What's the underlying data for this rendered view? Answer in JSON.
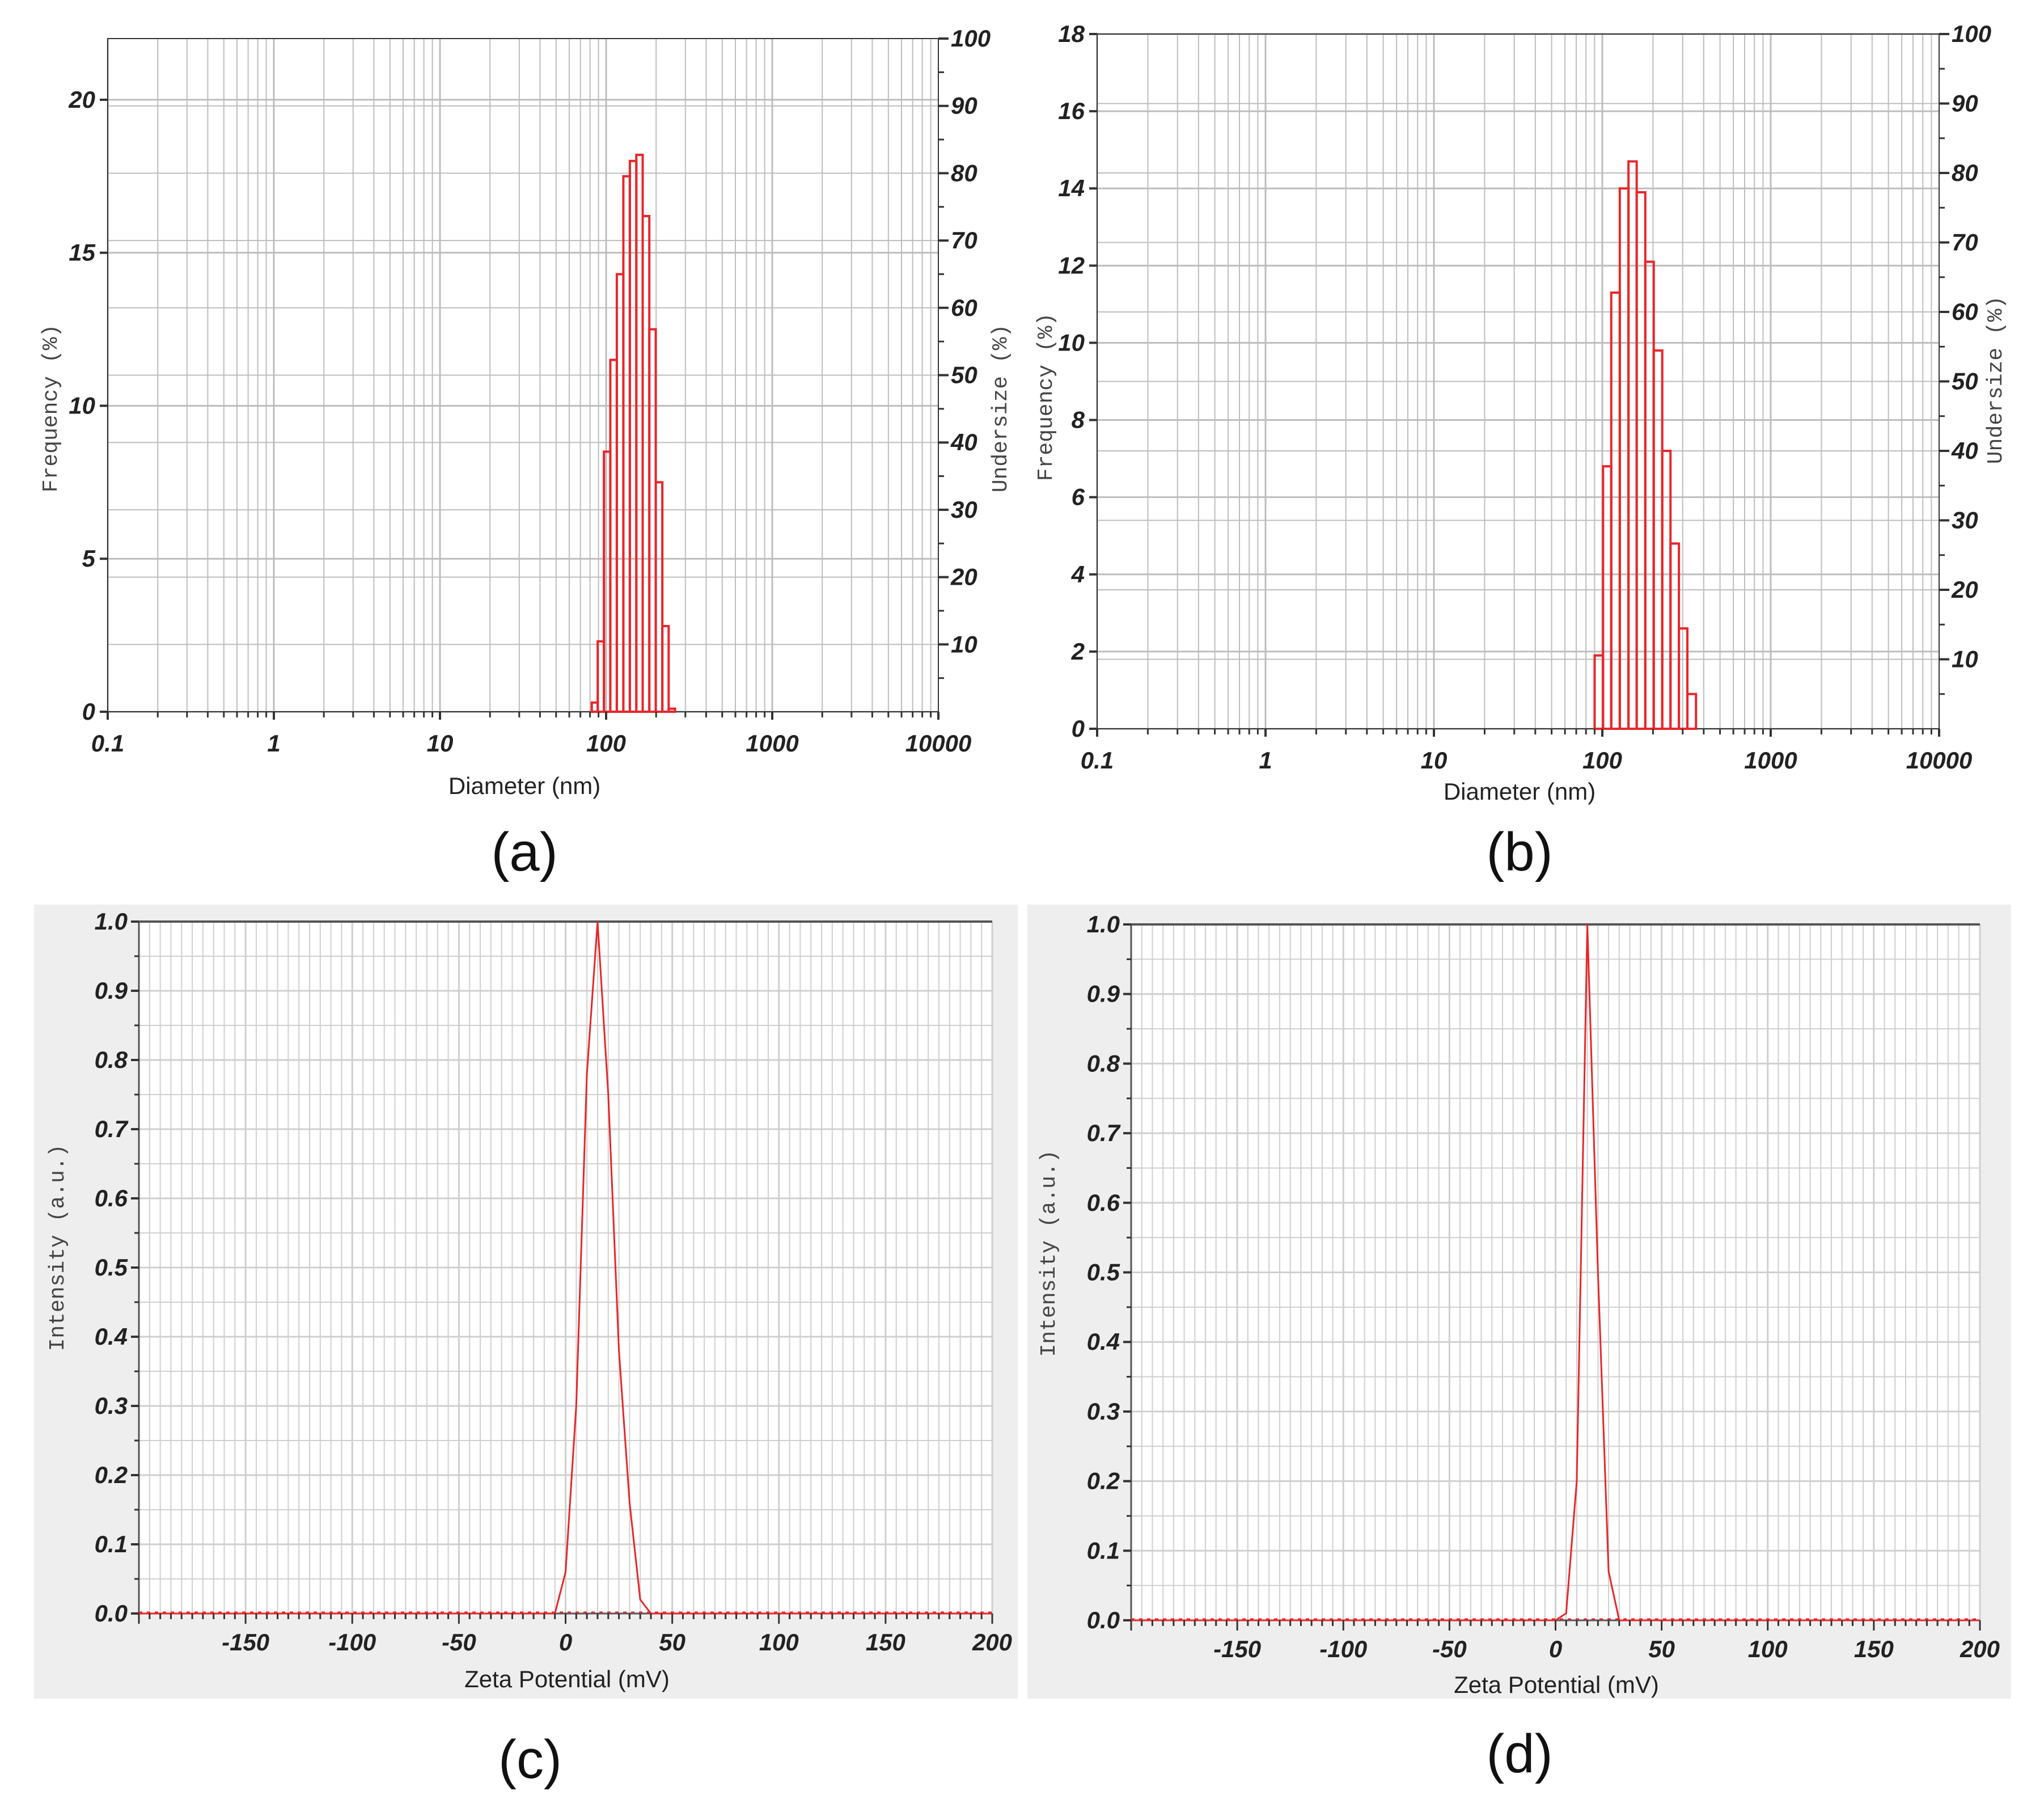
{
  "chart_data": [
    {
      "id": "a",
      "type": "bar",
      "panel_label": "(a)",
      "xlabel": "Diameter (nm)",
      "ylabel": "Frequency (%)",
      "y2label": "Undersize (%)",
      "xscale": "log",
      "xlim": [
        0.1,
        10000
      ],
      "ylim": [
        0,
        22
      ],
      "y2lim": [
        0,
        100
      ],
      "xticks": [
        "0.1",
        "1",
        "10",
        "100",
        "1000",
        "10000"
      ],
      "yticks": [
        "0",
        "5",
        "10",
        "15",
        "20"
      ],
      "y2ticks": [
        "10",
        "20",
        "30",
        "40",
        "50",
        "60",
        "70",
        "80",
        "90",
        "100"
      ],
      "grid": true,
      "bins": [
        {
          "x0": 82,
          "x1": 89,
          "y": 0.3
        },
        {
          "x0": 89,
          "x1": 97,
          "y": 2.3
        },
        {
          "x0": 97,
          "x1": 106,
          "y": 8.5
        },
        {
          "x0": 106,
          "x1": 116,
          "y": 11.5
        },
        {
          "x0": 116,
          "x1": 127,
          "y": 14.3
        },
        {
          "x0": 127,
          "x1": 139,
          "y": 17.5
        },
        {
          "x0": 139,
          "x1": 152,
          "y": 18.0
        },
        {
          "x0": 152,
          "x1": 166,
          "y": 18.2
        },
        {
          "x0": 166,
          "x1": 182,
          "y": 16.2
        },
        {
          "x0": 182,
          "x1": 199,
          "y": 12.5
        },
        {
          "x0": 199,
          "x1": 218,
          "y": 7.5
        },
        {
          "x0": 218,
          "x1": 238,
          "y": 2.8
        },
        {
          "x0": 238,
          "x1": 260,
          "y": 0.1
        }
      ]
    },
    {
      "id": "b",
      "type": "bar",
      "panel_label": "(b)",
      "xlabel": "Diameter (nm)",
      "ylabel": "Frequency (%)",
      "y2label": "Undersize (%)",
      "xscale": "log",
      "xlim": [
        0.1,
        10000
      ],
      "ylim": [
        0,
        18
      ],
      "y2lim": [
        0,
        100
      ],
      "xticks": [
        "0.1",
        "1",
        "10",
        "100",
        "1000",
        "10000"
      ],
      "yticks": [
        "0",
        "2",
        "4",
        "6",
        "8",
        "10",
        "12",
        "14",
        "16",
        "18"
      ],
      "y2ticks": [
        "10",
        "20",
        "30",
        "40",
        "50",
        "60",
        "70",
        "80",
        "90",
        "100"
      ],
      "grid": true,
      "bins": [
        {
          "x0": 90,
          "x1": 101,
          "y": 1.9
        },
        {
          "x0": 101,
          "x1": 113,
          "y": 6.8
        },
        {
          "x0": 113,
          "x1": 127,
          "y": 11.3
        },
        {
          "x0": 127,
          "x1": 143,
          "y": 14.0
        },
        {
          "x0": 143,
          "x1": 160,
          "y": 14.7
        },
        {
          "x0": 160,
          "x1": 180,
          "y": 13.9
        },
        {
          "x0": 180,
          "x1": 202,
          "y": 12.1
        },
        {
          "x0": 202,
          "x1": 227,
          "y": 9.8
        },
        {
          "x0": 227,
          "x1": 254,
          "y": 7.2
        },
        {
          "x0": 254,
          "x1": 285,
          "y": 4.8
        },
        {
          "x0": 285,
          "x1": 320,
          "y": 2.6
        },
        {
          "x0": 320,
          "x1": 360,
          "y": 0.9
        }
      ]
    },
    {
      "id": "c",
      "type": "line",
      "panel_label": "(c)",
      "xlabel": "Zeta Potential (mV)",
      "ylabel": "Intensity (a.u.)",
      "xlim": [
        -200,
        200
      ],
      "ylim": [
        0,
        1.0
      ],
      "xticks": [
        "-150",
        "-100",
        "-50",
        "0",
        "50",
        "100",
        "150",
        "200"
      ],
      "yticks": [
        "0.0",
        "0.1",
        "0.2",
        "0.3",
        "0.4",
        "0.5",
        "0.6",
        "0.7",
        "0.8",
        "0.9",
        "1.0"
      ],
      "grid": true,
      "x": [
        -200,
        -150,
        -100,
        -50,
        -20,
        -5,
        0,
        5,
        10,
        15,
        20,
        25,
        30,
        35,
        40,
        60,
        100,
        150,
        200
      ],
      "y": [
        0.0,
        0.0,
        0.0,
        0.0,
        0.0,
        0.0,
        0.06,
        0.3,
        0.78,
        1.0,
        0.75,
        0.38,
        0.16,
        0.02,
        0.0,
        0.0,
        0.0,
        0.0,
        0.0
      ]
    },
    {
      "id": "d",
      "type": "line",
      "panel_label": "(d)",
      "xlabel": "Zeta Potential (mV)",
      "ylabel": "Intensity (a.u.)",
      "xlim": [
        -200,
        200
      ],
      "ylim": [
        0,
        1.0
      ],
      "xticks": [
        "-150",
        "-100",
        "-50",
        "0",
        "50",
        "100",
        "150",
        "200"
      ],
      "yticks": [
        "0.0",
        "0.1",
        "0.2",
        "0.3",
        "0.4",
        "0.5",
        "0.6",
        "0.7",
        "0.8",
        "0.9",
        "1.0"
      ],
      "grid": true,
      "x": [
        -200,
        -150,
        -100,
        -50,
        0,
        5,
        10,
        15,
        20,
        25,
        30,
        35,
        60,
        100,
        150,
        200
      ],
      "y": [
        0.0,
        0.0,
        0.0,
        0.0,
        0.0,
        0.01,
        0.2,
        1.0,
        0.5,
        0.07,
        0.0,
        0.0,
        0.0,
        0.0,
        0.0,
        0.0
      ]
    }
  ],
  "colors": {
    "series": "#e8262a",
    "grid_a_b": "#bdbdbd",
    "grid_c_d": "#cfcfcf",
    "panel_bg_c_d": "#eeeeee",
    "axis": "#333333"
  }
}
